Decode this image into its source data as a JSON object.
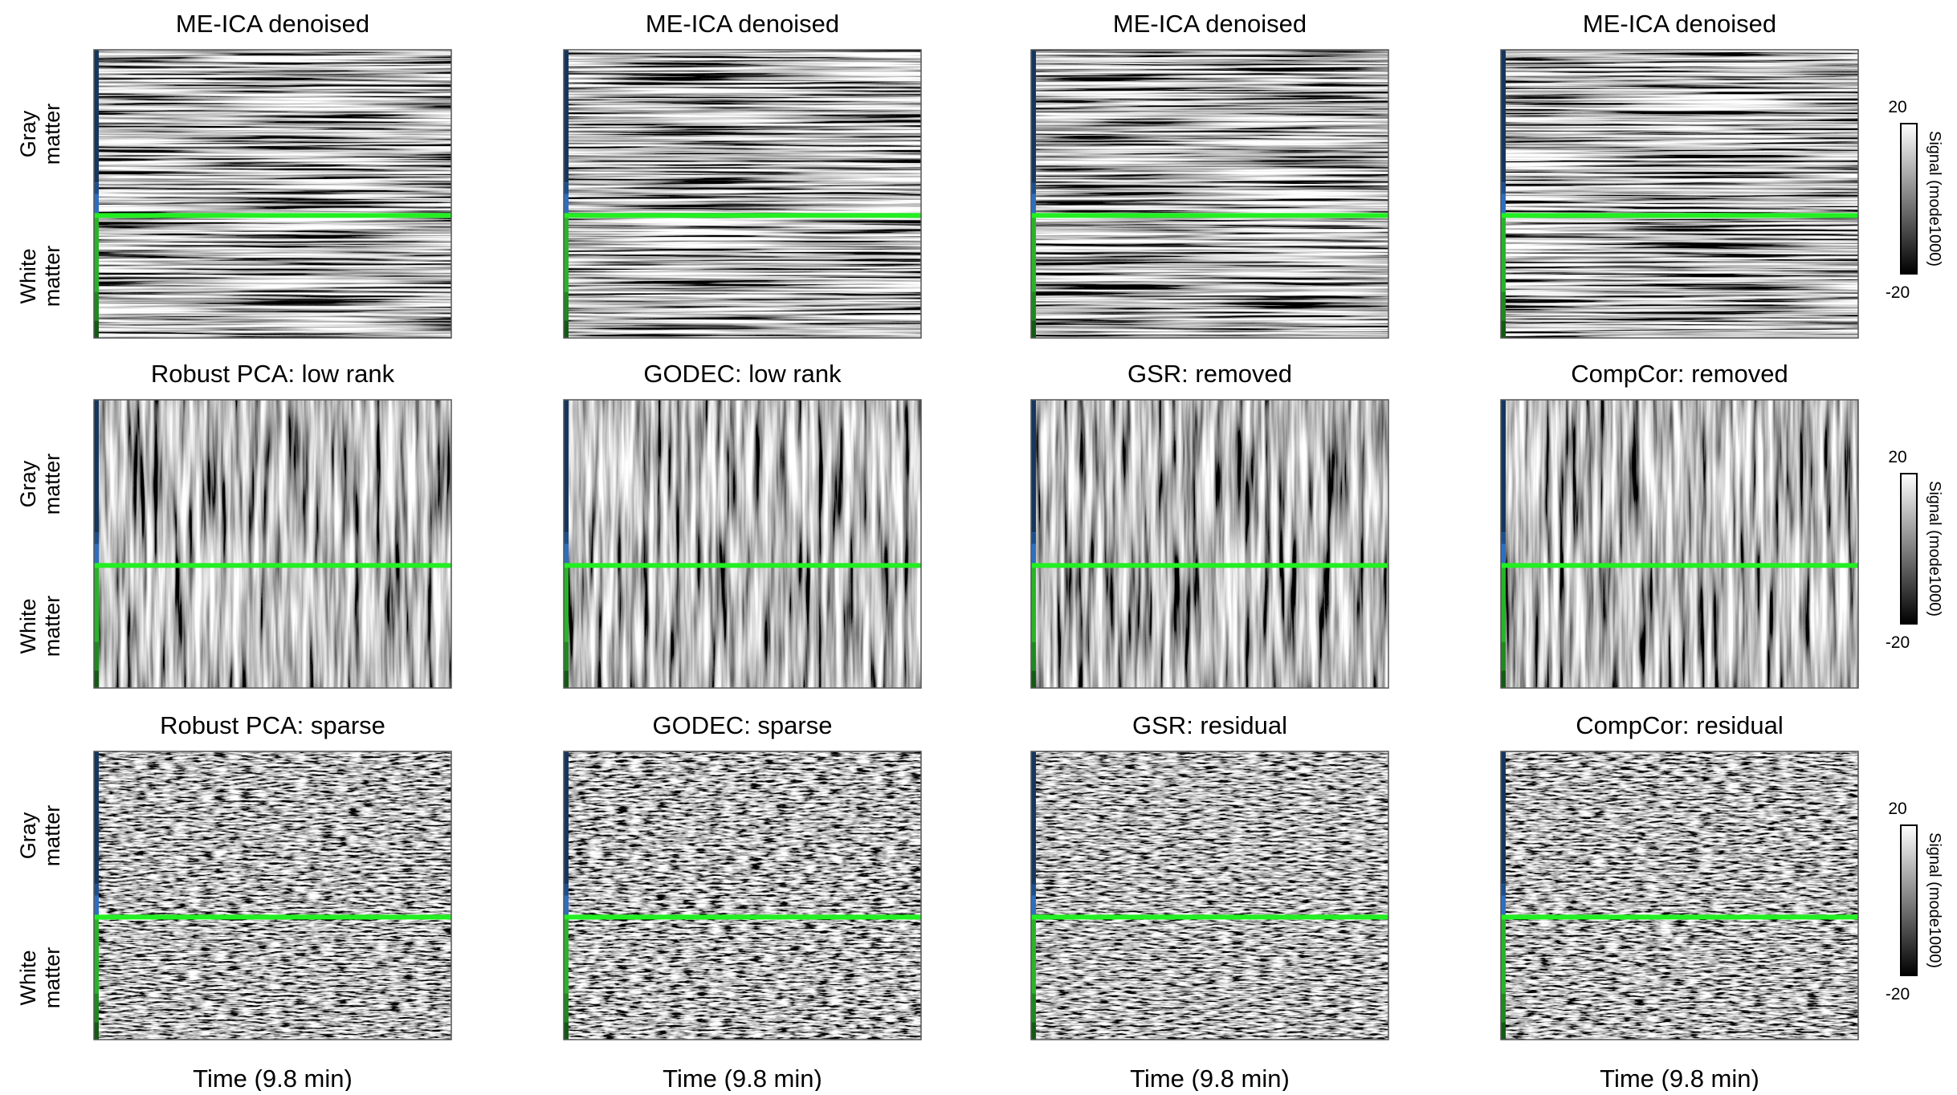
{
  "panels": [
    [
      "ME-ICA denoised",
      "ME-ICA denoised",
      "ME-ICA denoised",
      "ME-ICA denoised"
    ],
    [
      "Robust PCA: low rank",
      "GODEC: low rank",
      "GSR: removed",
      "CompCor: removed"
    ],
    [
      "Robust PCA: sparse",
      "GODEC: sparse",
      "GSR: residual",
      "CompCor: residual"
    ]
  ],
  "row_labels": [
    [
      "Gray",
      "matter"
    ],
    [
      "White",
      "matter"
    ]
  ],
  "x_label": "Time (9.8 min)",
  "colorbar": {
    "label": "Signal (mode1000)",
    "ticks": [
      -20,
      20
    ]
  }
}
